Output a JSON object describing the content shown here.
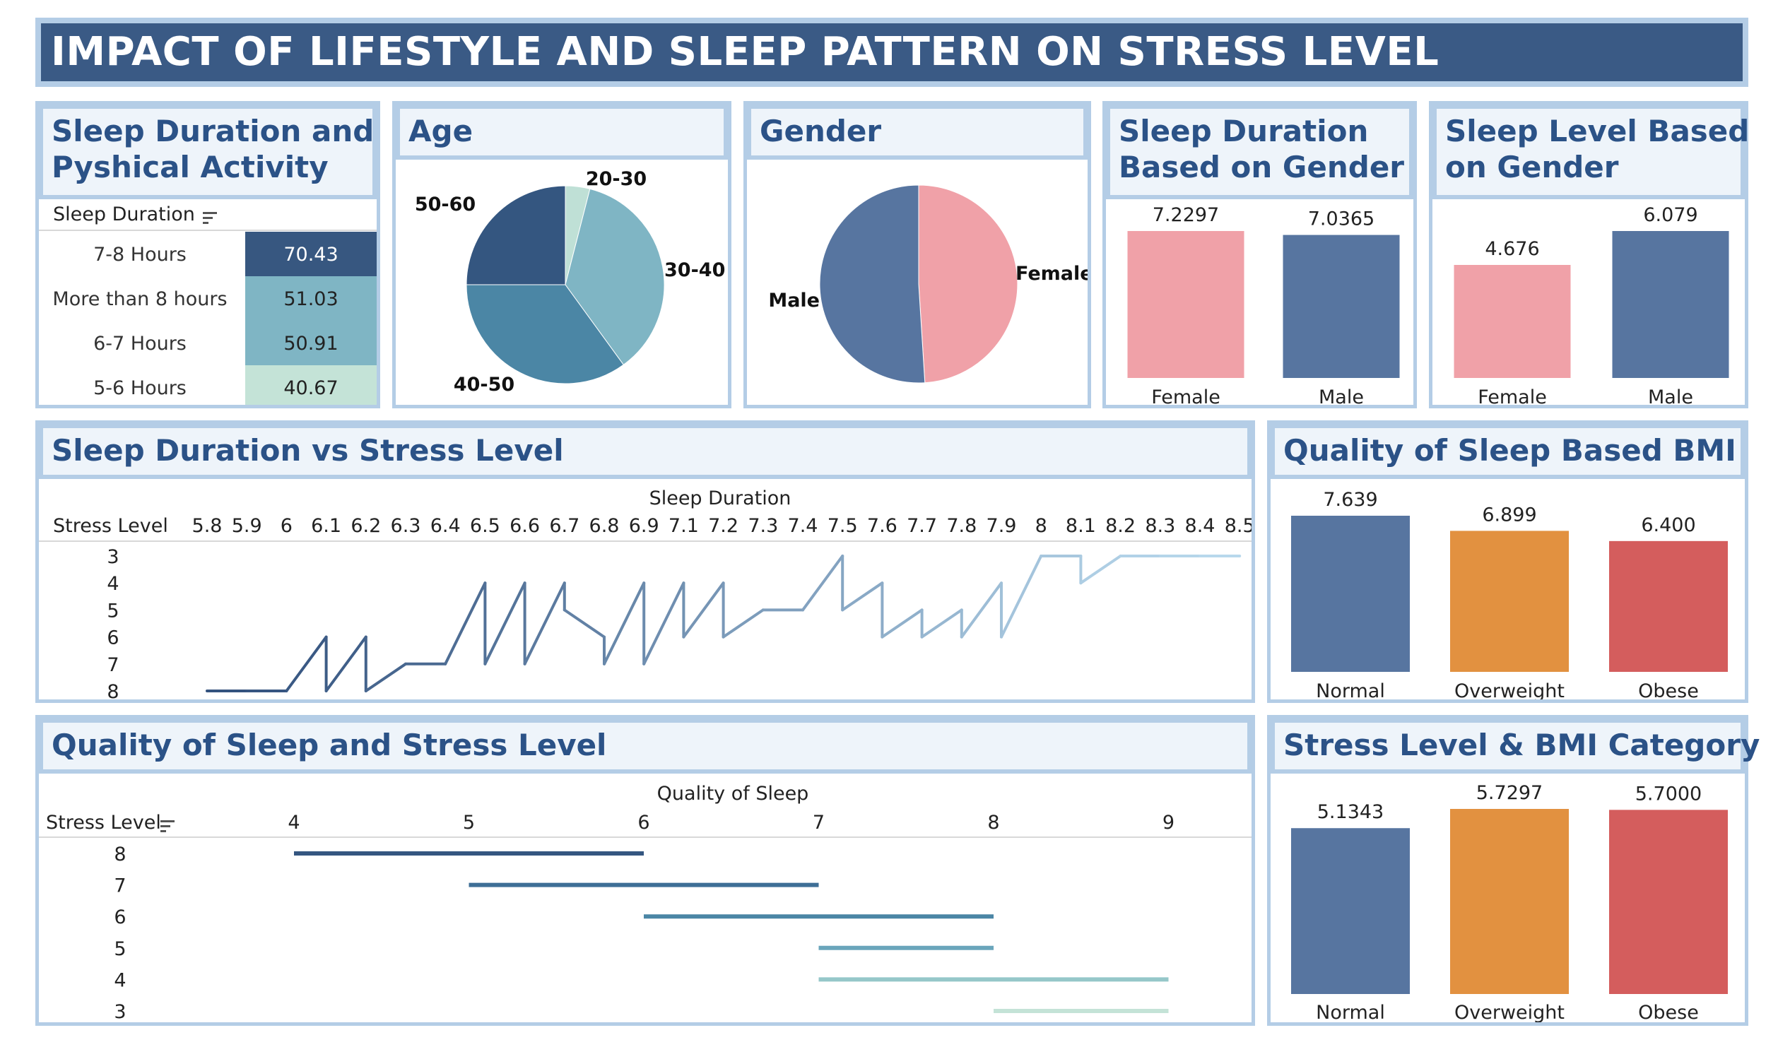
{
  "title": "IMPACT OF LIFESTYLE AND SLEEP PATTERN ON STRESS LEVEL",
  "panels": {
    "sleep_activity": {
      "title_line1": "Sleep Duration and",
      "title_line2": "Pyshical Activity",
      "column_header": "Sleep Duration"
    },
    "age": {
      "title": "Age"
    },
    "gender": {
      "title": "Gender"
    },
    "sleep_gender": {
      "title_line1": "Sleep Duration",
      "title_line2": "Based on Gender"
    },
    "sleep_level_gender": {
      "title_line1": "Sleep Level Based",
      "title_line2": "on Gender"
    },
    "sleep_vs_stress": {
      "title": "Sleep Duration vs Stress Level",
      "col_header": "Sleep Duration",
      "row_header": "Stress Level"
    },
    "quality_bmi": {
      "title": "Quality of Sleep Based BMI"
    },
    "quality_stress": {
      "title": "Quality of Sleep and Stress Level",
      "col_header": "Quality of Sleep",
      "row_header": "Stress Level"
    },
    "stress_bmi": {
      "title": "Stress Level & BMI Category"
    }
  },
  "colors": {
    "navy": "#3a5a85",
    "female": "#f0a1a8",
    "male": "#5775a0",
    "normal": "#5775a0",
    "overweight": "#e29140",
    "obese": "#d45d5d"
  },
  "chart_data": [
    {
      "id": "sleep_activity",
      "type": "table",
      "rows": [
        {
          "label": "7-8 Hours",
          "value": "70.43",
          "color": "#375780"
        },
        {
          "label": "More than 8 hours",
          "value": "51.03",
          "color": "#7fb5c4"
        },
        {
          "label": "6-7 Hours",
          "value": "50.91",
          "color": "#7fb5c4"
        },
        {
          "label": "5-6 Hours",
          "value": "40.67",
          "color": "#c4e3d7"
        }
      ]
    },
    {
      "id": "age",
      "type": "pie",
      "slices": [
        {
          "label": "20-30",
          "value": 4,
          "color": "#bfe0d6"
        },
        {
          "label": "30-40",
          "value": 36,
          "color": "#7fb5c4"
        },
        {
          "label": "40-50",
          "value": 35,
          "color": "#4b86a5"
        },
        {
          "label": "50-60",
          "value": 25,
          "color": "#345680"
        }
      ]
    },
    {
      "id": "gender",
      "type": "pie",
      "slices": [
        {
          "label": "Female",
          "value": 49,
          "color": "#f0a1a8"
        },
        {
          "label": "Male",
          "value": 51,
          "color": "#5775a0"
        }
      ]
    },
    {
      "id": "sleep_gender",
      "type": "bar",
      "categories": [
        "Female",
        "Male"
      ],
      "values": [
        7.2297,
        7.0365
      ],
      "labels": [
        "7.2297",
        "7.0365"
      ],
      "colors": [
        "#f0a1a8",
        "#5775a0"
      ]
    },
    {
      "id": "sleep_level_gender",
      "type": "bar",
      "categories": [
        "Female",
        "Male"
      ],
      "values": [
        4.676,
        6.079
      ],
      "labels": [
        "4.676",
        "6.079"
      ],
      "colors": [
        "#f0a1a8",
        "#5775a0"
      ]
    },
    {
      "id": "sleep_vs_stress",
      "type": "line",
      "x_ticks": [
        "5.8",
        "5.9",
        "6",
        "6.1",
        "6.2",
        "6.3",
        "6.4",
        "6.5",
        "6.6",
        "6.7",
        "6.8",
        "6.9",
        "7.1",
        "7.2",
        "7.3",
        "7.4",
        "7.5",
        "7.6",
        "7.7",
        "7.8",
        "7.9",
        "8",
        "8.1",
        "8.2",
        "8.3",
        "8.4",
        "8.5"
      ],
      "y_ticks": [
        "3",
        "4",
        "5",
        "6",
        "7",
        "8"
      ],
      "points": [
        [
          0,
          8
        ],
        [
          1,
          8
        ],
        [
          2,
          8
        ],
        [
          3,
          6
        ],
        [
          3,
          8
        ],
        [
          4,
          6
        ],
        [
          4,
          8
        ],
        [
          5,
          7
        ],
        [
          6,
          7
        ],
        [
          7,
          4
        ],
        [
          7,
          7
        ],
        [
          8,
          4
        ],
        [
          8,
          7
        ],
        [
          9,
          4
        ],
        [
          9,
          5
        ],
        [
          10,
          6
        ],
        [
          10,
          7
        ],
        [
          11,
          4
        ],
        [
          11,
          7
        ],
        [
          12,
          4
        ],
        [
          12,
          6
        ],
        [
          13,
          4
        ],
        [
          13,
          6
        ],
        [
          14,
          5
        ],
        [
          15,
          5
        ],
        [
          16,
          3
        ],
        [
          16,
          5
        ],
        [
          17,
          4
        ],
        [
          17,
          6
        ],
        [
          18,
          5
        ],
        [
          18,
          6
        ],
        [
          19,
          5
        ],
        [
          19,
          6
        ],
        [
          20,
          4
        ],
        [
          20,
          6
        ],
        [
          21,
          3
        ],
        [
          22,
          3
        ],
        [
          22,
          4
        ],
        [
          23,
          3
        ],
        [
          24,
          3
        ],
        [
          25,
          3
        ],
        [
          26,
          3
        ]
      ]
    },
    {
      "id": "quality_bmi",
      "type": "bar",
      "categories": [
        "Normal",
        "Overweight",
        "Obese"
      ],
      "values": [
        7.639,
        6.899,
        6.4
      ],
      "labels": [
        "7.639",
        "6.899",
        "6.400"
      ],
      "colors": [
        "#5775a0",
        "#e29140",
        "#d45d5d"
      ]
    },
    {
      "id": "quality_stress",
      "type": "bar",
      "x_ticks": [
        "4",
        "5",
        "6",
        "7",
        "8",
        "9"
      ],
      "rows": [
        {
          "stress": "8",
          "from": 4,
          "to": 6,
          "color": "#345680"
        },
        {
          "stress": "7",
          "from": 5,
          "to": 7,
          "color": "#3e6e96"
        },
        {
          "stress": "6",
          "from": 6,
          "to": 8,
          "color": "#4b86a5"
        },
        {
          "stress": "5",
          "from": 7,
          "to": 8,
          "color": "#6aa5bb"
        },
        {
          "stress": "4",
          "from": 7,
          "to": 9,
          "color": "#95c7c9"
        },
        {
          "stress": "3",
          "from": 8,
          "to": 9,
          "color": "#c4e3d7"
        }
      ]
    },
    {
      "id": "stress_bmi",
      "type": "bar",
      "categories": [
        "Normal",
        "Overweight",
        "Obese"
      ],
      "values": [
        5.1343,
        5.7297,
        5.7
      ],
      "labels": [
        "5.1343",
        "5.7297",
        "5.7000"
      ],
      "colors": [
        "#5775a0",
        "#e29140",
        "#d45d5d"
      ]
    }
  ]
}
